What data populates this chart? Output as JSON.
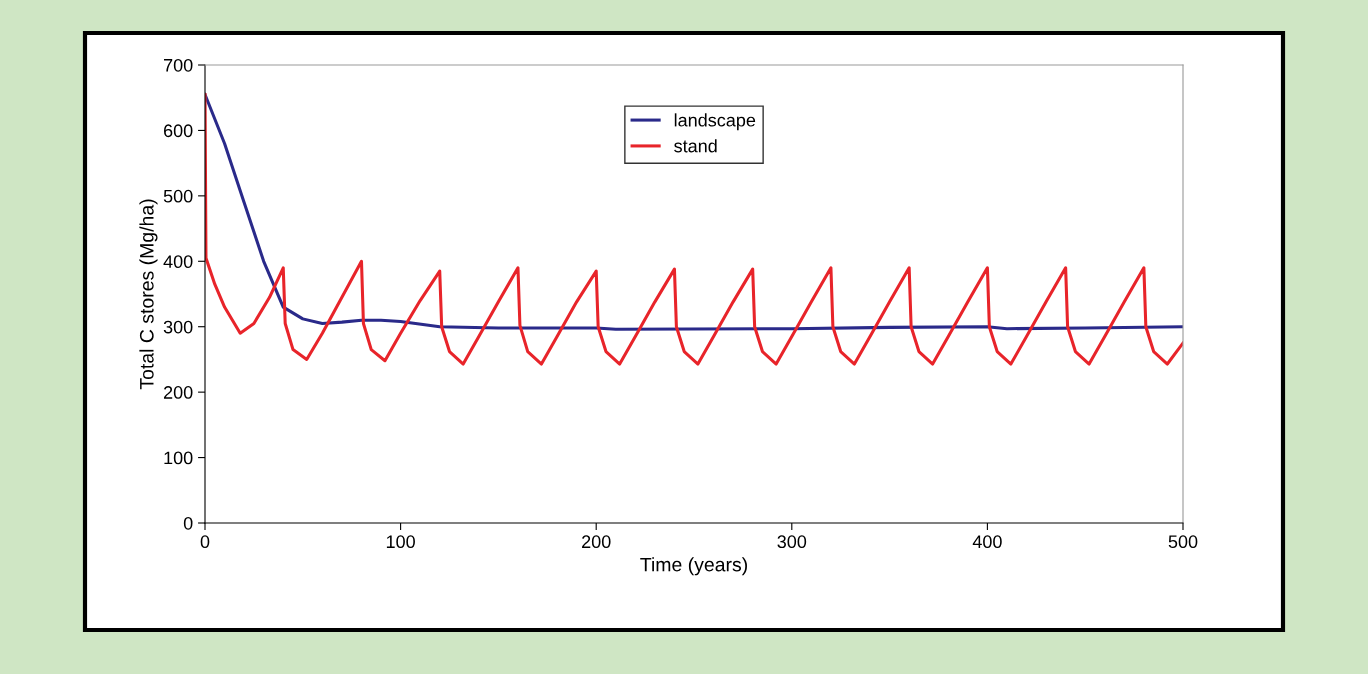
{
  "chart_data": {
    "type": "line",
    "xlabel": "Time (years)",
    "ylabel": "Total C stores (Mg/ha)",
    "xlim": [
      0,
      500
    ],
    "xticks": [
      0,
      100,
      200,
      300,
      400,
      500
    ],
    "ylim": [
      0,
      700
    ],
    "yticks": [
      0,
      100,
      200,
      300,
      400,
      500,
      600,
      700
    ],
    "grid": false,
    "legend": "top",
    "marker": "none",
    "line_style": "solid",
    "series": [
      {
        "name": "landscape",
        "color": "#2a2a8a",
        "x": [
          0,
          10,
          20,
          30,
          40,
          50,
          60,
          70,
          80,
          90,
          100,
          120,
          150,
          200,
          210,
          300,
          350,
          400,
          410,
          450,
          500
        ],
        "values": [
          655,
          580,
          490,
          400,
          330,
          312,
          305,
          307,
          310,
          310,
          308,
          300,
          298,
          298,
          296,
          297,
          299,
          300,
          297,
          298,
          300
        ]
      },
      {
        "name": "stand",
        "color": "#e8242a",
        "x": [
          0,
          0.5,
          5,
          10,
          18,
          25,
          33,
          40,
          41,
          45,
          52,
          60,
          70,
          80,
          81,
          85,
          92,
          100,
          110,
          120,
          121,
          125,
          132,
          140,
          150,
          160,
          161,
          165,
          172,
          180,
          190,
          200,
          201,
          205,
          212,
          220,
          230,
          240,
          241,
          245,
          252,
          260,
          270,
          280,
          281,
          285,
          292,
          300,
          310,
          320,
          321,
          325,
          332,
          340,
          350,
          360,
          361,
          365,
          372,
          380,
          390,
          400,
          401,
          405,
          412,
          420,
          430,
          440,
          441,
          445,
          452,
          460,
          470,
          480,
          481,
          485,
          492,
          500
        ],
        "values": [
          655,
          405,
          365,
          330,
          290,
          305,
          345,
          390,
          305,
          265,
          250,
          290,
          345,
          400,
          305,
          265,
          248,
          290,
          340,
          385,
          300,
          262,
          243,
          285,
          338,
          390,
          302,
          262,
          243,
          285,
          338,
          385,
          300,
          262,
          243,
          285,
          338,
          388,
          300,
          262,
          243,
          285,
          338,
          388,
          300,
          262,
          243,
          285,
          338,
          390,
          300,
          262,
          243,
          285,
          338,
          390,
          300,
          262,
          243,
          285,
          338,
          390,
          300,
          262,
          243,
          285,
          338,
          390,
          300,
          262,
          243,
          285,
          338,
          390,
          300,
          262,
          243,
          275
        ]
      }
    ]
  }
}
